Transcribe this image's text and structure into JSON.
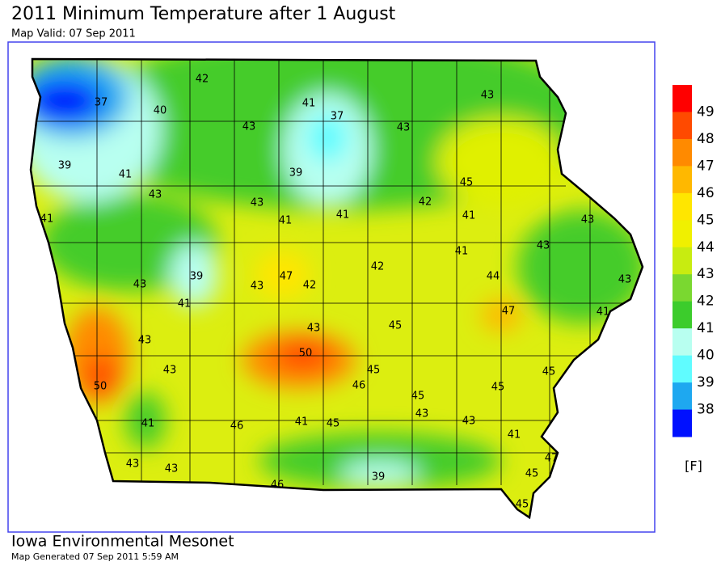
{
  "title": "2011 Minimum Temperature after 1 August",
  "subtitle": "Map Valid: 07 Sep 2011",
  "station_values": [
    42,
    37,
    40,
    41,
    37,
    43,
    43,
    43,
    39,
    41,
    39,
    45,
    43,
    43,
    42,
    41,
    41,
    41,
    41,
    43,
    41,
    43,
    39,
    47,
    42,
    43,
    42,
    44,
    43,
    43,
    41,
    43,
    45,
    47,
    41,
    43,
    50,
    43,
    45,
    46,
    45,
    50,
    45,
    45,
    43,
    43,
    41,
    46,
    41,
    45,
    41,
    47,
    43,
    43,
    39,
    45,
    46,
    45
  ],
  "legend": {
    "levels": [
      49,
      48,
      47,
      46,
      45,
      44,
      43,
      42,
      41,
      40,
      39,
      38
    ],
    "colors": [
      "#ff0000",
      "#ff4a00",
      "#ff8a00",
      "#ffb800",
      "#ffe600",
      "#f0f000",
      "#c8ec10",
      "#7ad830",
      "#3ccc2c",
      "#b8fff0",
      "#60fcff",
      "#1ea8f0",
      "#0010ff"
    ],
    "unit": "[F]"
  },
  "footer": {
    "organization": "Iowa Environmental Mesonet",
    "generated": "Map Generated 07 Sep 2011 5:59 AM"
  }
}
